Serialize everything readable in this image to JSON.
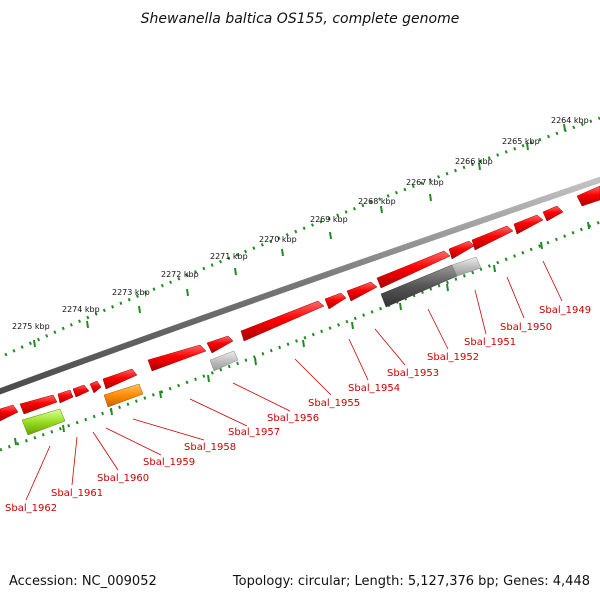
{
  "title": "Shewanella baltica OS155, complete genome",
  "accession_text": "Accession: NC_009052",
  "summary_text": "Topology: circular; Length: 5,127,376 bp; Genes: 4,448",
  "scale_labels": [
    "2264 kbp",
    "2265 kbp",
    "2266 kbp",
    "2267 kbp",
    "2268 kbp",
    "2269 kbp",
    "2270 kbp",
    "2271 kbp",
    "2272 kbp",
    "2273 kbp",
    "2274 kbp",
    "2275 kbp"
  ],
  "gene_labels": [
    "Sbal_1949",
    "Sbal_1950",
    "Sbal_1951",
    "Sbal_1952",
    "Sbal_1953",
    "Sbal_1954",
    "Sbal_1955",
    "Sbal_1956",
    "Sbal_1957",
    "Sbal_1958",
    "Sbal_1959",
    "Sbal_1960",
    "Sbal_1961",
    "Sbal_1962"
  ],
  "colors": {
    "gene_forward": "#ee0000",
    "backbone": "#777777",
    "tick": "#228b22",
    "gene_orange": "#ff8c00",
    "gene_lime": "#99dd22",
    "gene_gray_dark": "#555555",
    "gene_gray_light": "#bbbbbb",
    "label": "#cc0000"
  }
}
